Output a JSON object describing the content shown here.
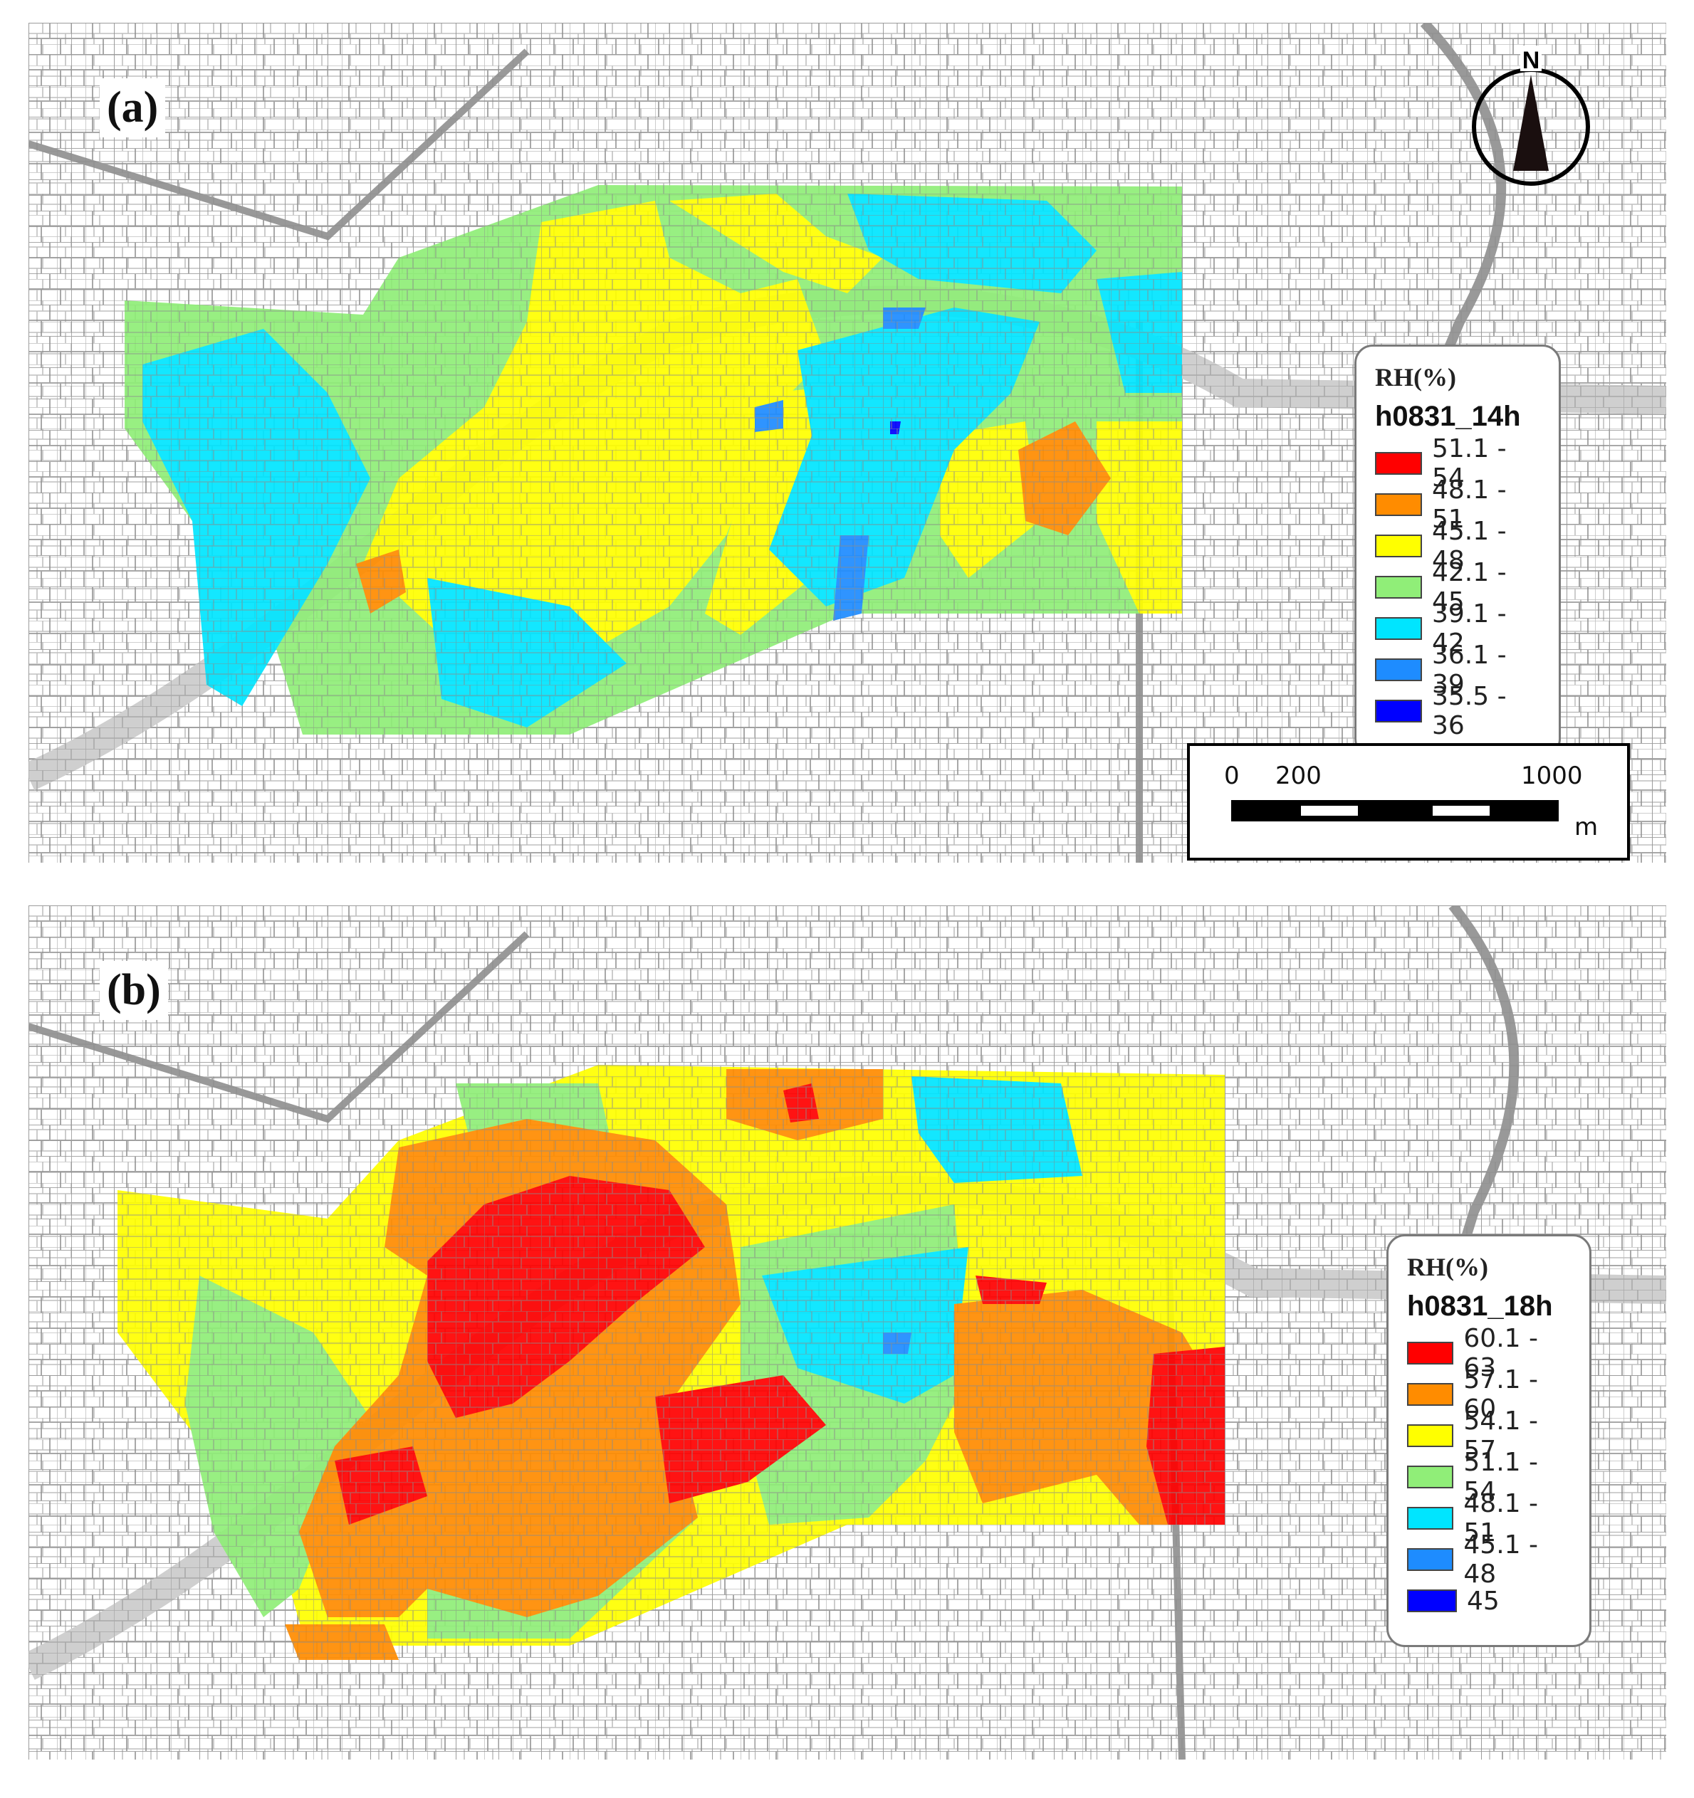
{
  "panels": [
    {
      "label": "(a)",
      "legend": {
        "title": "RH(%)",
        "subtitle": "h0831_14h",
        "classes": [
          {
            "range": "51.1 - 54",
            "color": "#ff0000"
          },
          {
            "range": "48.1 - 51",
            "color": "#ff8c00"
          },
          {
            "range": "45.1 - 48",
            "color": "#ffff00"
          },
          {
            "range": "42.1 - 45",
            "color": "#90ee78"
          },
          {
            "range": "39.1 - 42",
            "color": "#00e5ff"
          },
          {
            "range": "36.1 - 39",
            "color": "#1e8cff"
          },
          {
            "range": "35.5 - 36",
            "color": "#0000ff"
          }
        ]
      },
      "north_label": "N",
      "scale_bar": {
        "ticks": [
          "0",
          "200",
          "1000"
        ],
        "unit": "m"
      }
    },
    {
      "label": "(b)",
      "legend": {
        "title": "RH(%)",
        "subtitle": "h0831_18h",
        "classes": [
          {
            "range": "60.1 - 63",
            "color": "#ff0000"
          },
          {
            "range": "57.1 - 60",
            "color": "#ff8c00"
          },
          {
            "range": "54.1 - 57",
            "color": "#ffff00"
          },
          {
            "range": "51.1 - 54",
            "color": "#90ee78"
          },
          {
            "range": "48.1 - 51",
            "color": "#00e5ff"
          },
          {
            "range": "45.1 - 48",
            "color": "#1e8cff"
          },
          {
            "range": "45",
            "color": "#0000ff"
          }
        ]
      }
    }
  ],
  "colors": {
    "street_lines": "#9a9a9a",
    "river": "#d8f0d0",
    "frame": "#000000"
  }
}
